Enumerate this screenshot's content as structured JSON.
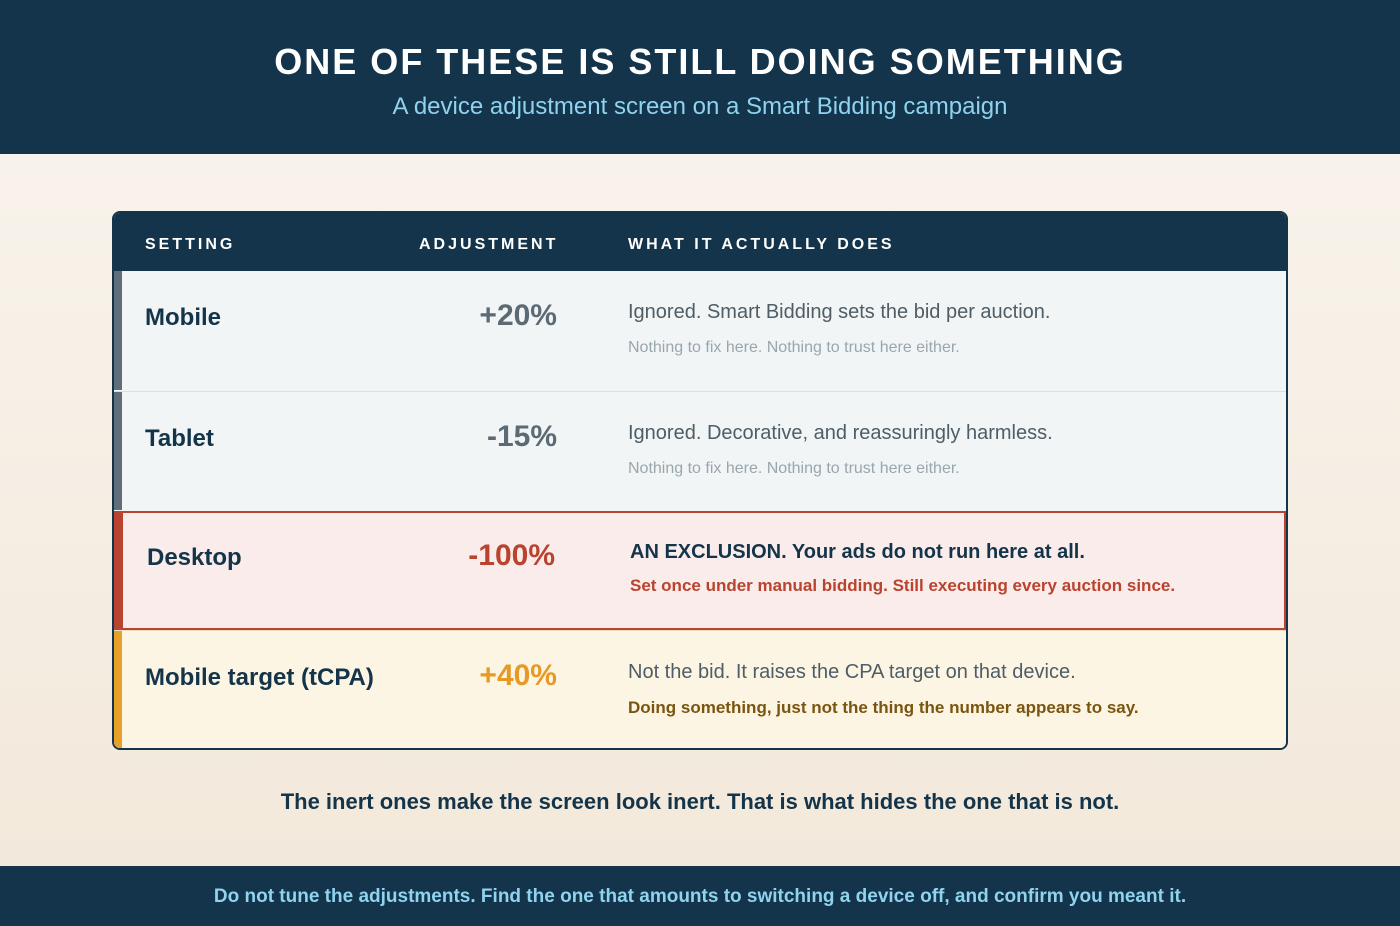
{
  "header": {
    "title": "ONE OF THESE IS STILL DOING SOMETHING",
    "subtitle": "A device adjustment screen on a Smart Bidding campaign"
  },
  "table": {
    "columns": {
      "setting": "SETTING",
      "adjustment": "ADJUSTMENT",
      "does": "WHAT IT ACTUALLY DOES"
    },
    "rows": [
      {
        "setting": "Mobile",
        "adjustment": "+20%",
        "does": "Ignored. Smart Bidding sets the bid per auction.",
        "note": "Nothing to fix here. Nothing to trust here either."
      },
      {
        "setting": "Tablet",
        "adjustment": "-15%",
        "does": "Ignored. Decorative, and reassuringly harmless.",
        "note": "Nothing to fix here. Nothing to trust here either."
      },
      {
        "setting": "Desktop",
        "adjustment": "-100%",
        "does": "AN EXCLUSION. Your ads do not run here at all.",
        "note": "Set once under manual bidding. Still executing every auction since."
      },
      {
        "setting": "Mobile target (tCPA)",
        "adjustment": "+40%",
        "does": "Not the bid. It raises the CPA target on that device.",
        "note": "Doing something, just not the thing the number appears to say."
      }
    ]
  },
  "caption": "The inert ones make the screen look inert. That is what hides the one that is not.",
  "footer": "Do not tune the adjustments. Find the one that amounts to switching a device off, and confirm you meant it.",
  "colors": {
    "navy": "#13344a",
    "accent_cyan": "#8fd3ee",
    "neutral_gray": "#5f6e78",
    "alert_red": "#b9432f",
    "warning_amber": "#e7a02a"
  }
}
